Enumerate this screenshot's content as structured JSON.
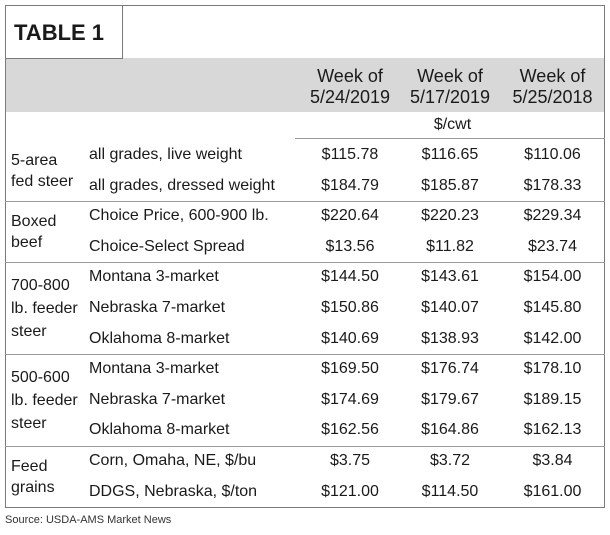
{
  "title": "TABLE 1",
  "table": {
    "columns": [
      [
        "Week of",
        "5/24/2019"
      ],
      [
        "Week of",
        "5/17/2019"
      ],
      [
        "Week of",
        "5/25/2018"
      ]
    ],
    "unit": "$/cwt",
    "groups": [
      {
        "label": [
          "5-area",
          "fed steer"
        ],
        "rows": [
          [
            "all grades, live weight",
            "$115.78",
            "$116.65",
            "$110.06"
          ],
          [
            "all grades, dressed weight",
            "$184.79",
            "$185.87",
            "$178.33"
          ]
        ]
      },
      {
        "label": [
          "Boxed",
          "beef"
        ],
        "rows": [
          [
            "Choice Price, 600-900 lb.",
            "$220.64",
            "$220.23",
            "$229.34"
          ],
          [
            "Choice-Select Spread",
            "$13.56",
            "$11.82",
            "$23.74"
          ]
        ]
      },
      {
        "label": [
          "700-800",
          "lb. feeder",
          "steer"
        ],
        "rows": [
          [
            "Montana 3-market",
            "$144.50",
            "$143.61",
            "$154.00"
          ],
          [
            "Nebraska 7-market",
            "$150.86",
            "$140.07",
            "$145.80"
          ],
          [
            "Oklahoma 8-market",
            "$140.69",
            "$138.93",
            "$142.00"
          ]
        ]
      },
      {
        "label": [
          "500-600",
          "lb. feeder",
          "steer"
        ],
        "rows": [
          [
            "Montana 3-market",
            "$169.50",
            "$176.74",
            "$178.10"
          ],
          [
            "Nebraska 7-market",
            "$174.69",
            "$179.67",
            "$189.15"
          ],
          [
            "Oklahoma 8-market",
            "$162.56",
            "$164.86",
            "$162.13"
          ]
        ]
      },
      {
        "label": [
          "Feed",
          "grains"
        ],
        "rows": [
          [
            "Corn, Omaha, NE, $/bu",
            "$3.75",
            "$3.72",
            "$3.84"
          ],
          [
            "DDGS, Nebraska, $/ton",
            "$121.00",
            "$114.50",
            "$161.00"
          ]
        ]
      }
    ]
  },
  "source": "Source: USDA-AMS Market News"
}
